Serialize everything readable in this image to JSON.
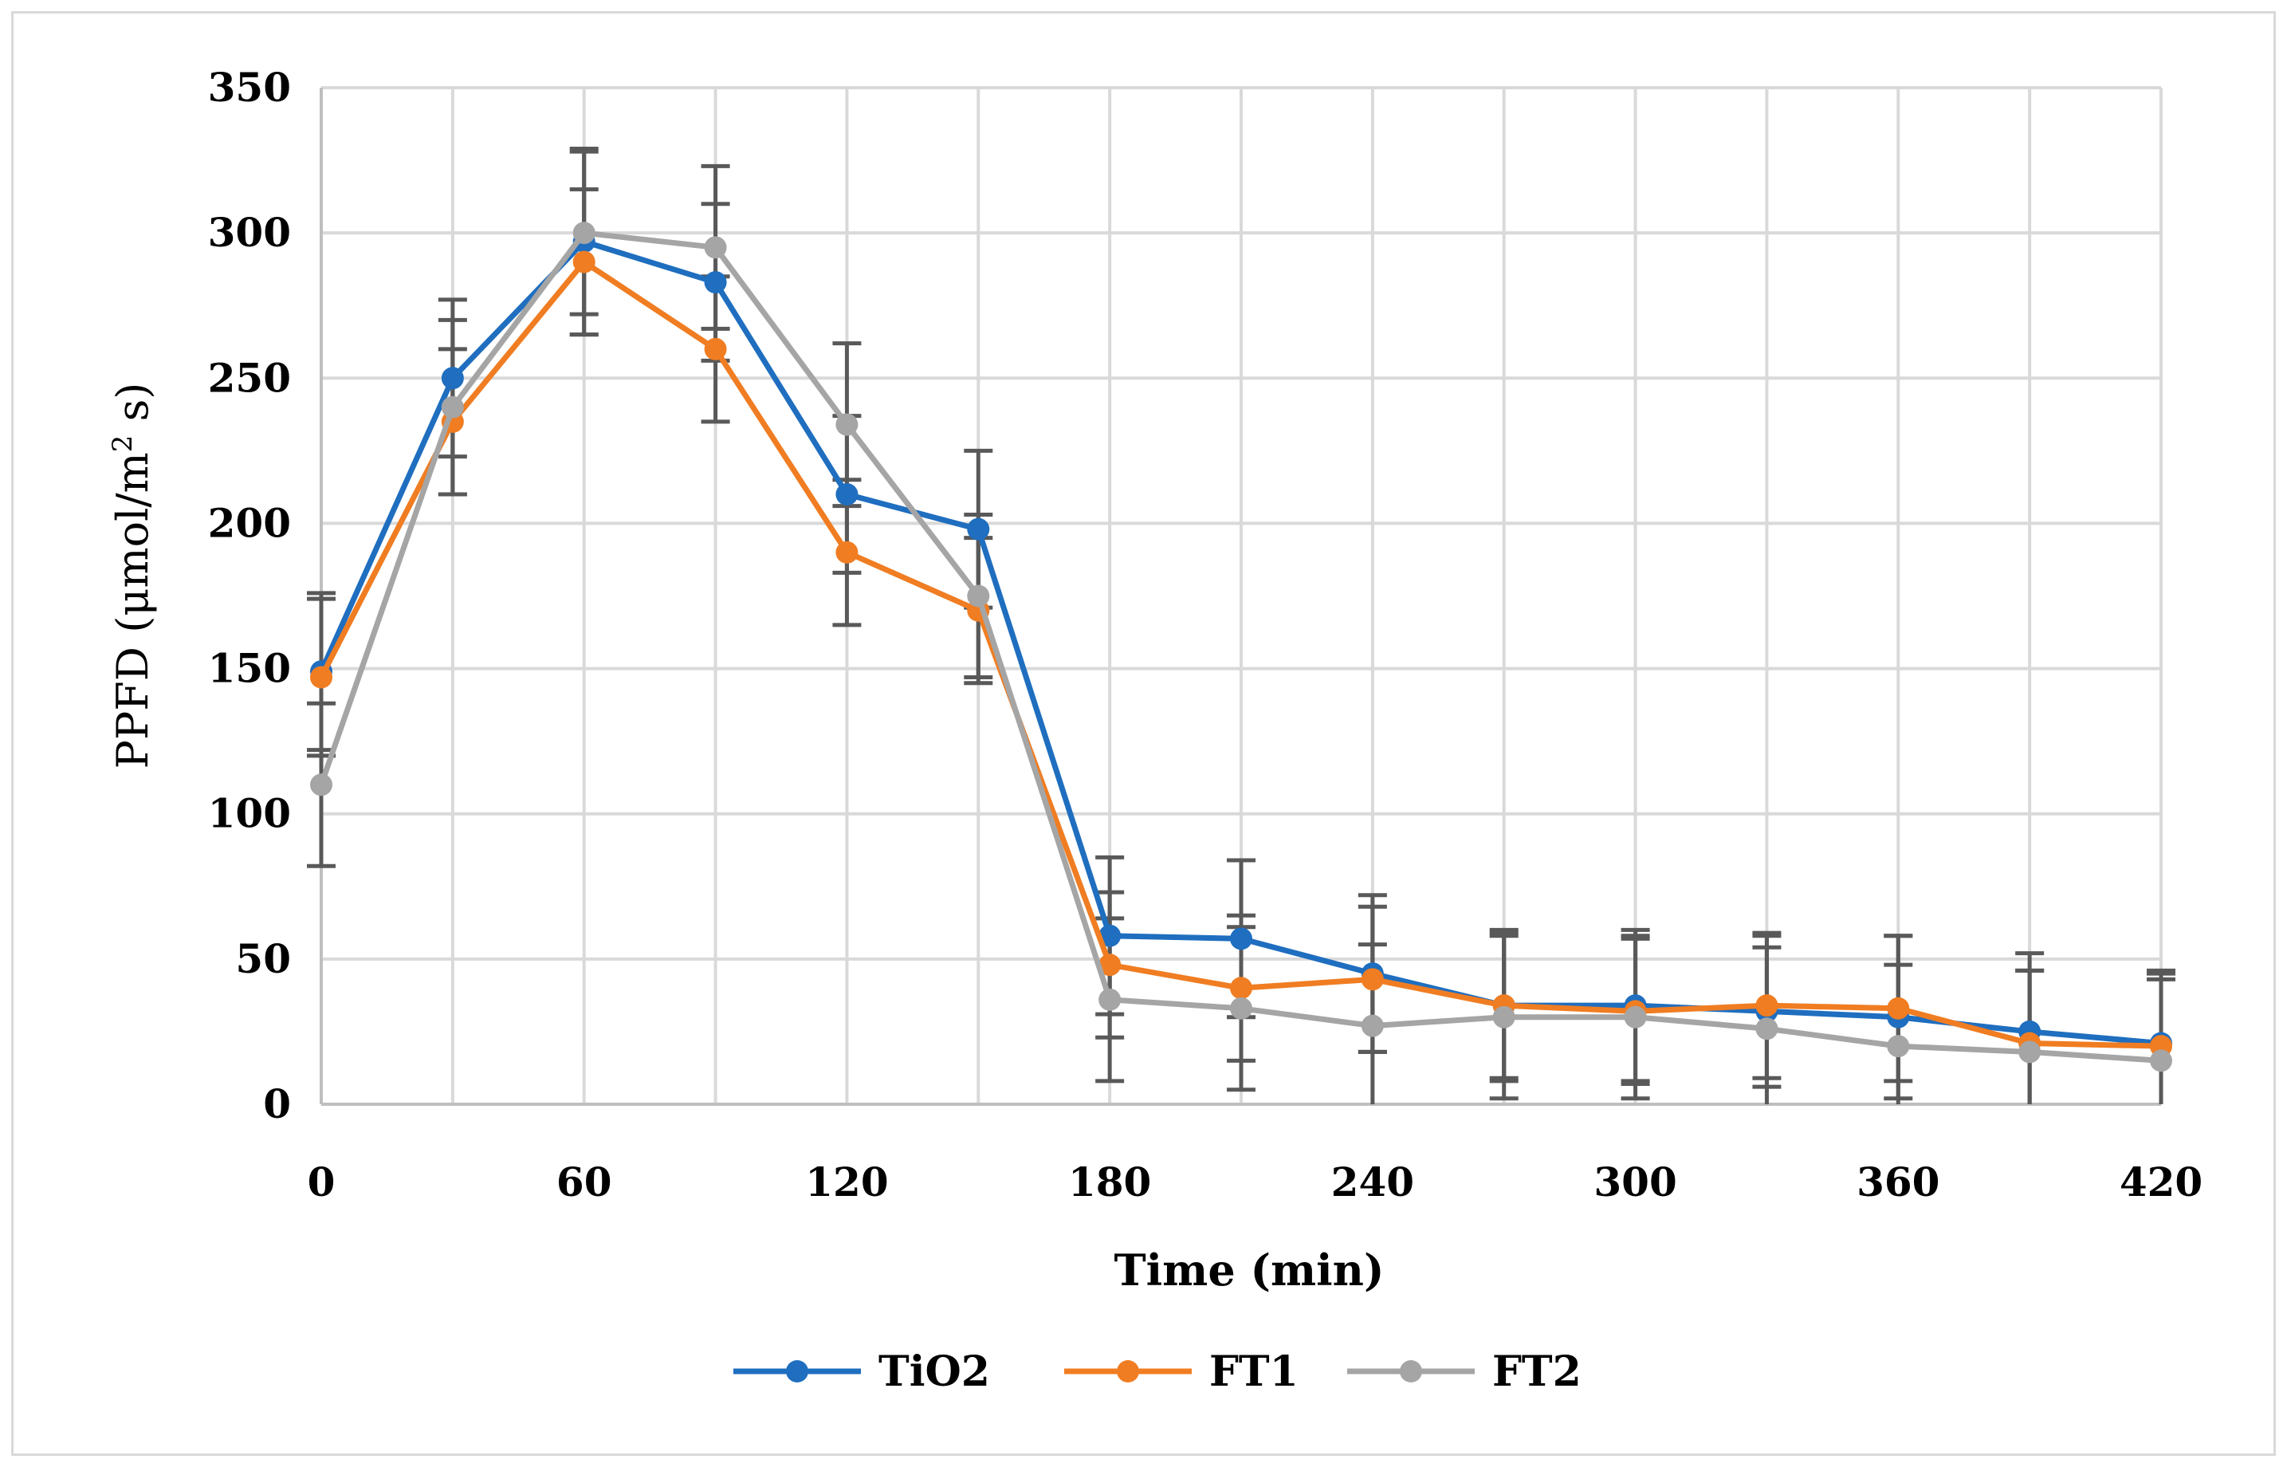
{
  "chart_data": {
    "type": "line",
    "title": "",
    "xlabel": "Time (min)",
    "ylabel_main": "PPFD (μmol/m",
    "ylabel_sup": "2",
    "ylabel_end": " s)",
    "xlim": [
      0,
      420
    ],
    "ylim": [
      0,
      350
    ],
    "xticks": [
      0,
      60,
      120,
      180,
      240,
      300,
      360,
      420
    ],
    "yticks": [
      0,
      50,
      100,
      150,
      200,
      250,
      300,
      350
    ],
    "grid": true,
    "legend_position": "bottom",
    "x": [
      0,
      30,
      60,
      90,
      120,
      150,
      180,
      210,
      240,
      270,
      300,
      330,
      360,
      390,
      420
    ],
    "series": [
      {
        "name": "TiO2",
        "color": "#1f6ebf",
        "values": [
          149,
          250,
          297,
          283,
          210,
          198,
          58,
          57,
          45,
          34,
          34,
          32,
          30,
          25,
          21
        ],
        "error": [
          27,
          27,
          32,
          27,
          27,
          27,
          27,
          27,
          27,
          26,
          26,
          26,
          28,
          27,
          25
        ]
      },
      {
        "name": "FT1",
        "color": "#f07d22",
        "values": [
          147,
          235,
          290,
          260,
          190,
          170,
          48,
          40,
          43,
          34,
          32,
          34,
          33,
          21,
          20
        ],
        "error": [
          27,
          25,
          25,
          25,
          25,
          25,
          25,
          25,
          25,
          25,
          25,
          25,
          25,
          25,
          25
        ]
      },
      {
        "name": "FT2",
        "color": "#a5a5a5",
        "values": [
          110,
          240,
          300,
          295,
          234,
          175,
          36,
          33,
          27,
          30,
          30,
          26,
          20,
          18,
          15
        ],
        "error": [
          28,
          30,
          28,
          28,
          28,
          28,
          28,
          28,
          28,
          28,
          28,
          28,
          28,
          28,
          28
        ]
      }
    ]
  }
}
